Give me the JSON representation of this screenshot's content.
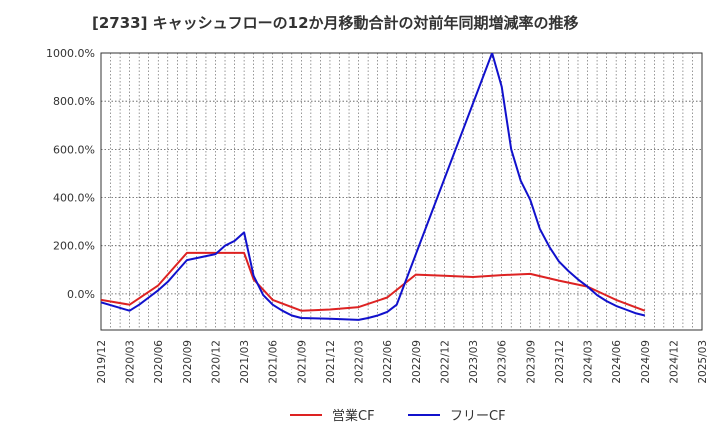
{
  "chart_data": {
    "type": "line",
    "title": "[2733]  キャッシュフローの12か月移動合計の対前年同期増減率の推移",
    "xlabel": "",
    "ylabel": "",
    "ylim": [
      -150,
      1000
    ],
    "yticks": [
      0,
      200,
      400,
      600,
      800,
      1000
    ],
    "ytick_labels": [
      "0.0%",
      "200.0%",
      "400.0%",
      "600.0%",
      "800.0%",
      "1000.0%"
    ],
    "x_tick_labels": [
      "2019/12",
      "2020/03",
      "2020/06",
      "2020/09",
      "2020/12",
      "2021/03",
      "2021/06",
      "2021/09",
      "2021/12",
      "2022/03",
      "2022/06",
      "2022/09",
      "2022/12",
      "2023/03",
      "2023/06",
      "2023/09",
      "2023/12",
      "2024/03",
      "2024/06",
      "2024/09",
      "2024/12",
      "2025/03"
    ],
    "grid": true,
    "legend_position": "bottom",
    "series": [
      {
        "name": "営業CF",
        "color": "#dd2222",
        "points": [
          {
            "x": "2019/12",
            "y": -25
          },
          {
            "x": "2020/03",
            "y": -45
          },
          {
            "x": "2020/06",
            "y": 35
          },
          {
            "x": "2020/09",
            "y": 170
          },
          {
            "x": "2020/12",
            "y": 170
          },
          {
            "x": "2021/03",
            "y": 170
          },
          {
            "x": "2021/04",
            "y": 60
          },
          {
            "x": "2021/06",
            "y": -25
          },
          {
            "x": "2021/09",
            "y": -70
          },
          {
            "x": "2021/12",
            "y": -65
          },
          {
            "x": "2022/03",
            "y": -55
          },
          {
            "x": "2022/06",
            "y": -15
          },
          {
            "x": "2022/09",
            "y": 80
          },
          {
            "x": "2022/12",
            "y": 75
          },
          {
            "x": "2023/03",
            "y": 70
          },
          {
            "x": "2023/06",
            "y": 78
          },
          {
            "x": "2023/09",
            "y": 83
          },
          {
            "x": "2023/12",
            "y": 55
          },
          {
            "x": "2024/03",
            "y": 30
          },
          {
            "x": "2024/06",
            "y": -25
          },
          {
            "x": "2024/09",
            "y": -70
          }
        ]
      },
      {
        "name": "フリーCF",
        "color": "#1111cc",
        "points": [
          {
            "x": "2019/12",
            "y": -35
          },
          {
            "x": "2020/03",
            "y": -70
          },
          {
            "x": "2020/04",
            "y": -45
          },
          {
            "x": "2020/05",
            "y": -15
          },
          {
            "x": "2020/06",
            "y": 15
          },
          {
            "x": "2020/07",
            "y": 50
          },
          {
            "x": "2020/08",
            "y": 95
          },
          {
            "x": "2020/09",
            "y": 140
          },
          {
            "x": "2020/12",
            "y": 165
          },
          {
            "x": "2021/01",
            "y": 200
          },
          {
            "x": "2021/02",
            "y": 220
          },
          {
            "x": "2021/03",
            "y": 255
          },
          {
            "x": "2021/04",
            "y": 75
          },
          {
            "x": "2021/05",
            "y": -5
          },
          {
            "x": "2021/06",
            "y": -45
          },
          {
            "x": "2021/07",
            "y": -70
          },
          {
            "x": "2021/08",
            "y": -90
          },
          {
            "x": "2021/09",
            "y": -100
          },
          {
            "x": "2021/12",
            "y": -103
          },
          {
            "x": "2022/03",
            "y": -108
          },
          {
            "x": "2022/04",
            "y": -100
          },
          {
            "x": "2022/05",
            "y": -90
          },
          {
            "x": "2022/06",
            "y": -75
          },
          {
            "x": "2022/07",
            "y": -45
          },
          {
            "x": "2022/08",
            "y": 60
          },
          {
            "x": "2023/05",
            "y": 1000
          },
          {
            "x": "2023/06",
            "y": 860
          },
          {
            "x": "2023/07",
            "y": 600
          },
          {
            "x": "2023/08",
            "y": 470
          },
          {
            "x": "2023/09",
            "y": 390
          },
          {
            "x": "2023/10",
            "y": 270
          },
          {
            "x": "2023/11",
            "y": 195
          },
          {
            "x": "2023/12",
            "y": 135
          },
          {
            "x": "2024/01",
            "y": 95
          },
          {
            "x": "2024/02",
            "y": 60
          },
          {
            "x": "2024/03",
            "y": 30
          },
          {
            "x": "2024/04",
            "y": -5
          },
          {
            "x": "2024/05",
            "y": -30
          },
          {
            "x": "2024/06",
            "y": -50
          },
          {
            "x": "2024/07",
            "y": -65
          },
          {
            "x": "2024/08",
            "y": -80
          },
          {
            "x": "2024/09",
            "y": -90
          }
        ]
      }
    ]
  }
}
